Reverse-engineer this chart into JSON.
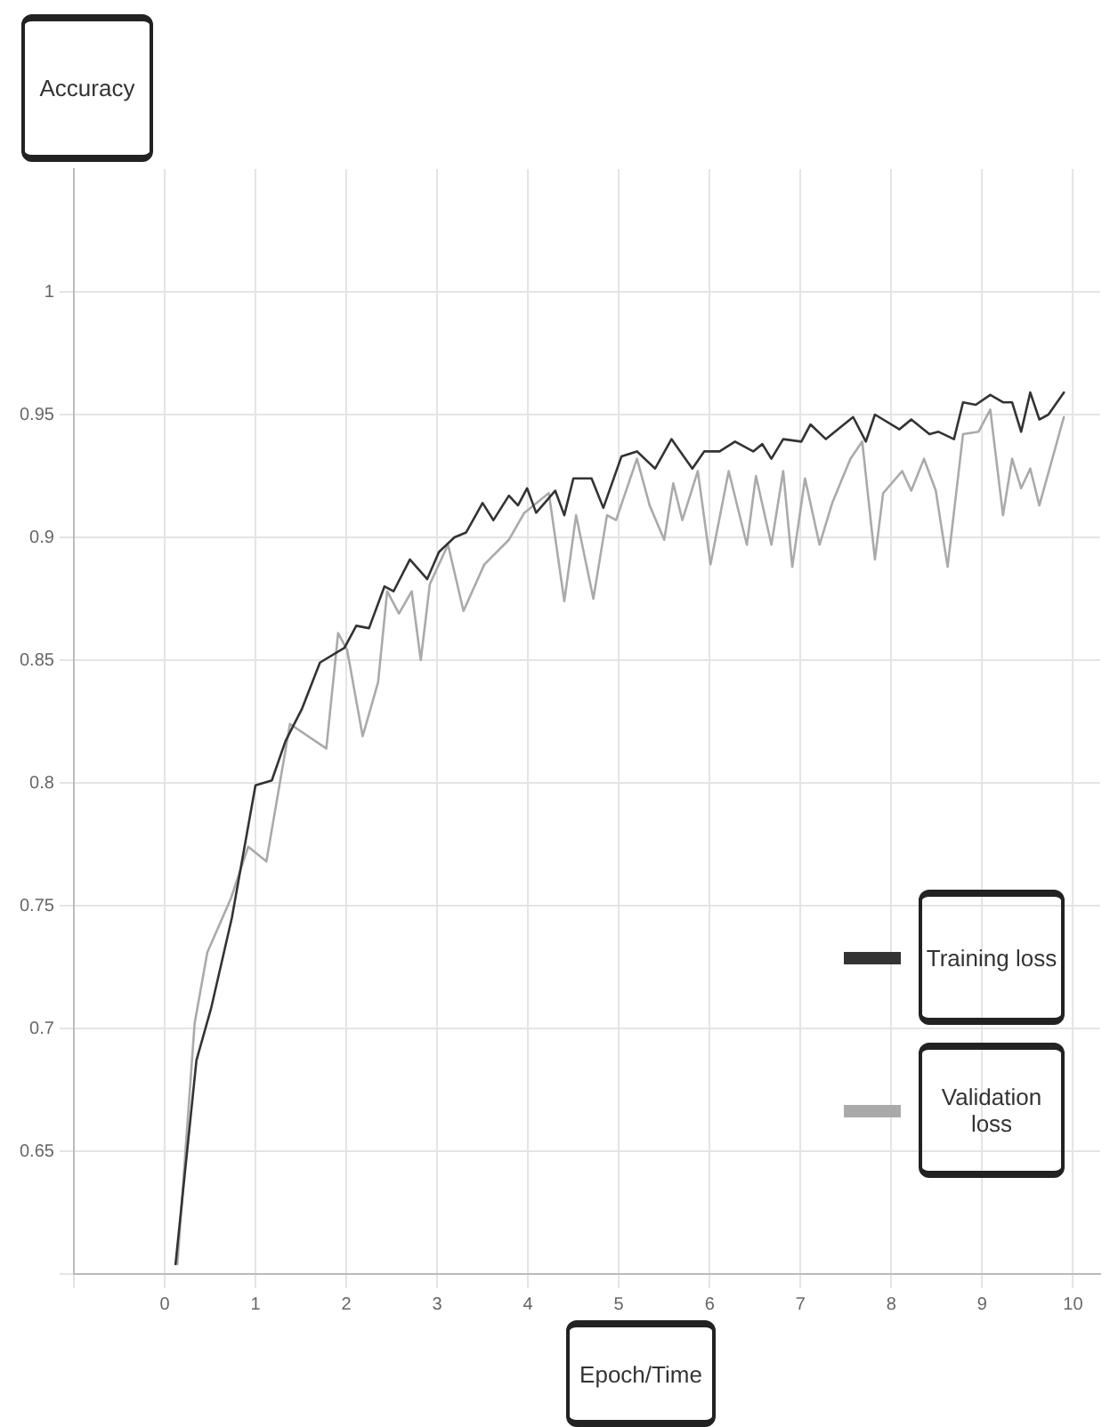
{
  "chart_data": {
    "type": "line",
    "xlabel": "Epoch/Time",
    "ylabel": "Accuracy",
    "xlim": [
      -1,
      10.3
    ],
    "xticks": [
      {
        "value": -1,
        "label": null
      },
      0,
      1,
      2,
      3,
      4,
      5,
      6,
      7,
      8,
      9,
      10
    ],
    "ylim": [
      0.6,
      1.05
    ],
    "yticks": [
      {
        "value": 0.6,
        "label": null
      },
      0.65,
      0.7,
      0.75,
      0.8,
      0.85,
      0.9,
      0.95,
      1
    ],
    "grid": true,
    "legend": "bottom right",
    "marker": "none",
    "line_style": "solid",
    "series": [
      {
        "name": "Training loss",
        "color": "#333333",
        "x": [
          0.12,
          0.35,
          0.51,
          0.74,
          1.0,
          1.18,
          1.33,
          1.51,
          1.71,
          1.98,
          2.11,
          2.25,
          2.42,
          2.52,
          2.7,
          2.89,
          3.02,
          3.19,
          3.32,
          3.5,
          3.62,
          3.79,
          3.89,
          3.99,
          4.09,
          4.3,
          4.4,
          4.5,
          4.7,
          4.83,
          5.03,
          5.2,
          5.4,
          5.58,
          5.81,
          5.94,
          6.11,
          6.28,
          6.48,
          6.58,
          6.68,
          6.81,
          7.01,
          7.11,
          7.28,
          7.58,
          7.72,
          7.82,
          8.09,
          8.22,
          8.42,
          8.52,
          8.69,
          8.79,
          8.93,
          9.09,
          9.23,
          9.33,
          9.43,
          9.53,
          9.63,
          9.73,
          9.9
        ],
        "values": [
          0.604,
          0.687,
          0.708,
          0.745,
          0.799,
          0.801,
          0.817,
          0.83,
          0.849,
          0.855,
          0.864,
          0.863,
          0.88,
          0.878,
          0.891,
          0.883,
          0.894,
          0.9,
          0.902,
          0.914,
          0.907,
          0.917,
          0.913,
          0.92,
          0.91,
          0.919,
          0.909,
          0.924,
          0.924,
          0.912,
          0.933,
          0.935,
          0.928,
          0.94,
          0.928,
          0.935,
          0.935,
          0.939,
          0.935,
          0.938,
          0.932,
          0.94,
          0.939,
          0.946,
          0.94,
          0.949,
          0.939,
          0.95,
          0.944,
          0.948,
          0.942,
          0.943,
          0.94,
          0.955,
          0.954,
          0.958,
          0.955,
          0.955,
          0.943,
          0.959,
          0.948,
          0.95,
          0.959
        ]
      },
      {
        "name": "Validation loss",
        "color": "#aaaaaa",
        "x": [
          0.14,
          0.33,
          0.47,
          0.73,
          0.92,
          1.12,
          1.38,
          1.78,
          1.91,
          2.01,
          2.18,
          2.35,
          2.45,
          2.58,
          2.72,
          2.82,
          2.92,
          3.12,
          3.29,
          3.52,
          3.79,
          3.96,
          4.23,
          4.4,
          4.53,
          4.72,
          4.87,
          4.97,
          5.2,
          5.34,
          5.5,
          5.6,
          5.7,
          5.87,
          6.01,
          6.21,
          6.41,
          6.51,
          6.68,
          6.81,
          6.91,
          7.05,
          7.21,
          7.35,
          7.55,
          7.68,
          7.82,
          7.91,
          8.12,
          8.22,
          8.36,
          8.49,
          8.62,
          8.79,
          8.96,
          9.09,
          9.23,
          9.33,
          9.43,
          9.53,
          9.63,
          9.9
        ],
        "values": [
          0.604,
          0.702,
          0.731,
          0.753,
          0.774,
          0.768,
          0.824,
          0.814,
          0.861,
          0.854,
          0.819,
          0.841,
          0.878,
          0.869,
          0.878,
          0.85,
          0.881,
          0.897,
          0.87,
          0.889,
          0.899,
          0.91,
          0.918,
          0.874,
          0.909,
          0.875,
          0.909,
          0.907,
          0.932,
          0.913,
          0.899,
          0.922,
          0.907,
          0.927,
          0.889,
          0.927,
          0.897,
          0.925,
          0.897,
          0.927,
          0.888,
          0.924,
          0.897,
          0.914,
          0.932,
          0.939,
          0.891,
          0.918,
          0.927,
          0.919,
          0.932,
          0.919,
          0.888,
          0.942,
          0.943,
          0.952,
          0.909,
          0.932,
          0.92,
          0.928,
          0.913,
          0.949
        ]
      }
    ]
  }
}
